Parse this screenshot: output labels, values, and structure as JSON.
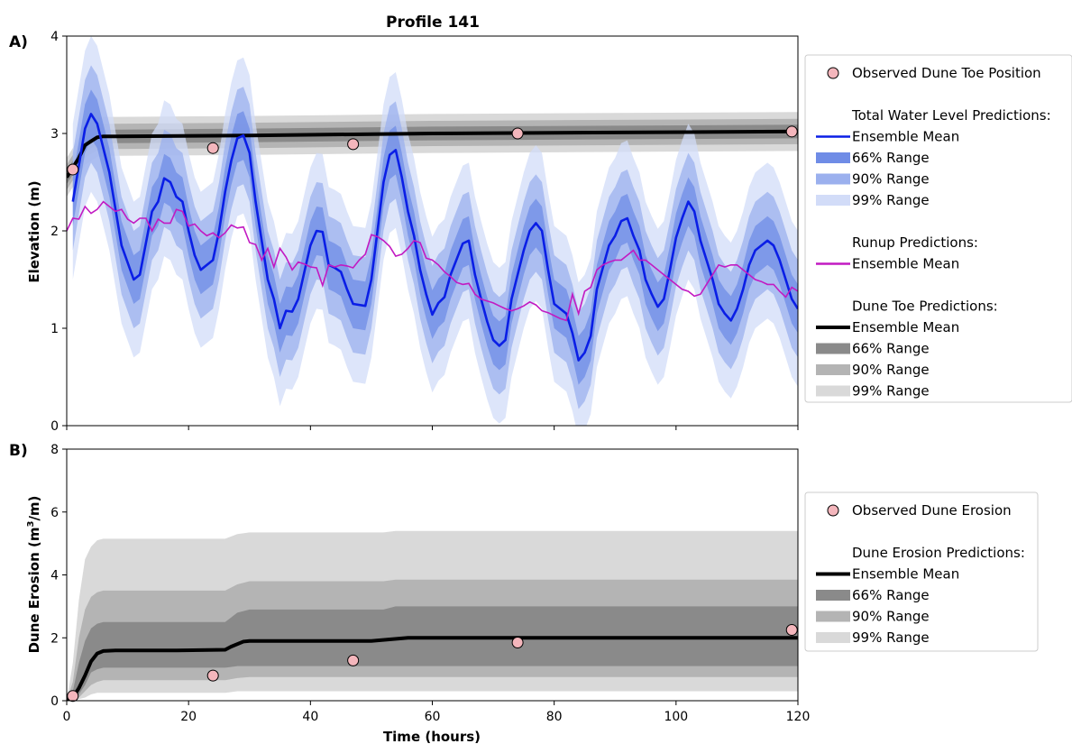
{
  "figure": {
    "title": "Profile 141",
    "panel_a_label": "A)",
    "panel_b_label": "B)"
  },
  "colors": {
    "twl_mean": "#0a1ee6",
    "twl_bands": [
      "#6f8ce6",
      "#9bb0ee",
      "#d2dcf8"
    ],
    "runup": "#c21ac2",
    "toe_bands": [
      "#8a8a8a",
      "#b4b4b4",
      "#d9d9d9"
    ],
    "observed_fill": "#f4b6bc"
  },
  "chart_data": [
    {
      "type": "line",
      "panel": "A)",
      "title": "Profile 141",
      "xlabel": "",
      "ylabel": "Elevation (m)",
      "xlim": [
        0,
        120
      ],
      "ylim": [
        0,
        4
      ],
      "xticks": [
        0,
        20,
        40,
        60,
        80,
        100,
        120
      ],
      "xtick_labels": [
        "",
        "",
        "",
        "",
        "",
        "",
        ""
      ],
      "yticks": [
        0,
        1,
        2,
        3,
        4
      ],
      "ytick_labels": [
        "0",
        "1",
        "2",
        "3",
        "4"
      ],
      "grid": false,
      "legend_position": "outside-right",
      "legend": [
        {
          "kind": "marker",
          "label": "Observed Dune Toe Position"
        },
        {
          "kind": "header",
          "label": "Total Water Level Predictions:"
        },
        {
          "kind": "line",
          "label": "Ensemble Mean",
          "color_key": "twl_mean"
        },
        {
          "kind": "band",
          "label": "66% Range",
          "color_key": "twl_bands",
          "index": 0
        },
        {
          "kind": "band",
          "label": "90% Range",
          "color_key": "twl_bands",
          "index": 1
        },
        {
          "kind": "band",
          "label": "99% Range",
          "color_key": "twl_bands",
          "index": 2
        },
        {
          "kind": "header",
          "label": "Runup Predictions:"
        },
        {
          "kind": "line",
          "label": "Ensemble Mean",
          "color_key": "runup"
        },
        {
          "kind": "header",
          "label": "Dune Toe Predictions:"
        },
        {
          "kind": "line",
          "label": "Ensemble Mean",
          "color_key": "black"
        },
        {
          "kind": "band",
          "label": "66% Range",
          "color_key": "toe_bands",
          "index": 0
        },
        {
          "kind": "band",
          "label": "90% Range",
          "color_key": "toe_bands",
          "index": 1
        },
        {
          "kind": "band",
          "label": "99% Range",
          "color_key": "toe_bands",
          "index": 2
        }
      ],
      "series": {
        "twl_mean": {
          "x": [
            1,
            3,
            4,
            5,
            7,
            9,
            11,
            12,
            14,
            15,
            16,
            17,
            18,
            19,
            20,
            21,
            22,
            24,
            25,
            26,
            27,
            28,
            29,
            30,
            31,
            33,
            34,
            35,
            36,
            37,
            38,
            39,
            40,
            41,
            42,
            43,
            44,
            45,
            46,
            47,
            49,
            50,
            51,
            52,
            53,
            54,
            55,
            56,
            57,
            58,
            59,
            60,
            61,
            62,
            63,
            65,
            66,
            67,
            68,
            69,
            70,
            71,
            72,
            73,
            75,
            76,
            77,
            78,
            79,
            80,
            81,
            82,
            83,
            84,
            85,
            86,
            87,
            89,
            90,
            91,
            92,
            93,
            94,
            95,
            96,
            97,
            98,
            99,
            100,
            101,
            102,
            103,
            104,
            106,
            107,
            108,
            109,
            110,
            111,
            112,
            113,
            114,
            115,
            116,
            117,
            118,
            119,
            120
          ],
          "values": [
            2.3,
            3.05,
            3.2,
            3.1,
            2.6,
            1.85,
            1.5,
            1.55,
            2.2,
            2.3,
            2.54,
            2.5,
            2.35,
            2.3,
            2.0,
            1.75,
            1.6,
            1.7,
            2.0,
            2.4,
            2.72,
            2.95,
            2.98,
            2.8,
            2.3,
            1.5,
            1.3,
            1.0,
            1.18,
            1.17,
            1.3,
            1.58,
            1.85,
            2.0,
            1.99,
            1.65,
            1.62,
            1.58,
            1.4,
            1.25,
            1.23,
            1.5,
            2.0,
            2.5,
            2.78,
            2.83,
            2.55,
            2.2,
            1.95,
            1.6,
            1.35,
            1.14,
            1.26,
            1.32,
            1.55,
            1.87,
            1.9,
            1.55,
            1.3,
            1.07,
            0.88,
            0.82,
            0.88,
            1.3,
            1.8,
            2.0,
            2.08,
            2.0,
            1.6,
            1.25,
            1.2,
            1.15,
            0.95,
            0.67,
            0.75,
            0.92,
            1.4,
            1.85,
            1.95,
            2.1,
            2.13,
            1.95,
            1.8,
            1.5,
            1.35,
            1.22,
            1.3,
            1.6,
            1.93,
            2.13,
            2.3,
            2.2,
            1.9,
            1.5,
            1.25,
            1.15,
            1.08,
            1.2,
            1.4,
            1.65,
            1.8,
            1.85,
            1.9,
            1.85,
            1.7,
            1.5,
            1.3,
            1.2
          ],
          "half_widths_66_90_99": [
            0.25,
            0.5,
            0.8
          ]
        },
        "runup_mean": {
          "x": [
            0,
            1,
            2,
            3,
            4,
            5,
            6,
            7,
            8,
            9,
            10,
            11,
            12,
            13,
            14,
            15,
            16,
            17,
            18,
            19,
            20,
            21,
            22,
            23,
            24,
            25,
            26,
            27,
            28,
            29,
            30,
            31,
            32,
            33,
            34,
            35,
            36,
            37,
            38,
            39,
            40,
            41,
            42,
            43,
            44,
            45,
            46,
            47,
            48,
            49,
            50,
            51,
            52,
            53,
            54,
            55,
            56,
            57,
            58,
            59,
            60,
            61,
            62,
            63,
            64,
            65,
            66,
            67,
            68,
            69,
            70,
            71,
            72,
            73,
            74,
            75,
            76,
            77,
            78,
            79,
            80,
            81,
            82,
            83,
            84,
            85,
            86,
            87,
            88,
            89,
            90,
            91,
            92,
            93,
            94,
            95,
            96,
            97,
            98,
            99,
            100,
            101,
            102,
            103,
            104,
            105,
            106,
            107,
            108,
            109,
            110,
            111,
            112,
            113,
            114,
            115,
            116,
            117,
            118,
            119,
            120
          ],
          "values": [
            2.0,
            2.13,
            2.12,
            2.25,
            2.18,
            2.22,
            2.3,
            2.25,
            2.2,
            2.22,
            2.12,
            2.08,
            2.13,
            2.13,
            2.0,
            2.12,
            2.08,
            2.08,
            2.22,
            2.2,
            2.05,
            2.07,
            2.0,
            1.95,
            1.98,
            1.93,
            1.98,
            2.06,
            2.03,
            2.04,
            1.88,
            1.86,
            1.7,
            1.82,
            1.63,
            1.82,
            1.73,
            1.6,
            1.68,
            1.66,
            1.63,
            1.62,
            1.44,
            1.65,
            1.63,
            1.65,
            1.64,
            1.62,
            1.7,
            1.76,
            1.96,
            1.94,
            1.9,
            1.84,
            1.74,
            1.76,
            1.82,
            1.9,
            1.88,
            1.72,
            1.7,
            1.65,
            1.58,
            1.53,
            1.47,
            1.45,
            1.46,
            1.35,
            1.3,
            1.28,
            1.26,
            1.23,
            1.2,
            1.18,
            1.2,
            1.23,
            1.27,
            1.24,
            1.18,
            1.16,
            1.13,
            1.1,
            1.08,
            1.35,
            1.15,
            1.38,
            1.42,
            1.6,
            1.65,
            1.68,
            1.7,
            1.7,
            1.75,
            1.8,
            1.7,
            1.7,
            1.65,
            1.6,
            1.55,
            1.5,
            1.45,
            1.4,
            1.38,
            1.33,
            1.35,
            1.45,
            1.55,
            1.65,
            1.63,
            1.65,
            1.65,
            1.6,
            1.55,
            1.5,
            1.48,
            1.45,
            1.45,
            1.38,
            1.32,
            1.42,
            1.38
          ]
        },
        "toe_mean": {
          "x": [
            0,
            1,
            2,
            3,
            4,
            5,
            6,
            8,
            30,
            60,
            90,
            120
          ],
          "values": [
            2.55,
            2.65,
            2.75,
            2.88,
            2.92,
            2.96,
            2.97,
            2.97,
            2.98,
            3.0,
            3.01,
            3.02
          ],
          "half_widths_66_90_99": [
            0.07,
            0.13,
            0.2
          ]
        },
        "observed_toe": {
          "x": [
            1,
            24,
            47,
            74,
            119
          ],
          "values": [
            2.63,
            2.85,
            2.89,
            3.0,
            3.02
          ]
        }
      }
    },
    {
      "type": "line",
      "panel": "B)",
      "title": "",
      "xlabel": "Time (hours)",
      "ylabel": "Dune Erosion (m³/m)",
      "ylabel_parts": [
        "Dune Erosion (m",
        "3",
        "/m)"
      ],
      "xlim": [
        0,
        120
      ],
      "ylim": [
        0,
        8
      ],
      "xticks": [
        0,
        20,
        40,
        60,
        80,
        100,
        120
      ],
      "xtick_labels": [
        "0",
        "20",
        "40",
        "60",
        "80",
        "100",
        "120"
      ],
      "yticks": [
        0,
        2,
        4,
        6,
        8
      ],
      "ytick_labels": [
        "0",
        "2",
        "4",
        "6",
        "8"
      ],
      "grid": false,
      "legend_position": "outside-right",
      "legend": [
        {
          "kind": "marker",
          "label": "Observed Dune Erosion"
        },
        {
          "kind": "header",
          "label": "Dune Erosion Predictions:"
        },
        {
          "kind": "line",
          "label": "Ensemble Mean",
          "color_key": "black"
        },
        {
          "kind": "band",
          "label": "66% Range",
          "color_key": "toe_bands",
          "index": 0
        },
        {
          "kind": "band",
          "label": "90% Range",
          "color_key": "toe_bands",
          "index": 1
        },
        {
          "kind": "band",
          "label": "99% Range",
          "color_key": "toe_bands",
          "index": 2
        }
      ],
      "series": {
        "mean": {
          "x": [
            0,
            1,
            2,
            3,
            4,
            5,
            6,
            8,
            18,
            26,
            27,
            29,
            30,
            50,
            53,
            56,
            120
          ],
          "values": [
            0,
            0.1,
            0.4,
            0.8,
            1.25,
            1.5,
            1.58,
            1.6,
            1.6,
            1.62,
            1.72,
            1.88,
            1.9,
            1.9,
            1.95,
            2.0,
            2.0
          ]
        },
        "band_66": {
          "x": [
            0,
            1,
            2,
            3,
            4,
            5,
            6,
            8,
            26,
            28,
            30,
            52,
            54,
            120
          ],
          "lower": [
            0,
            0.05,
            0.2,
            0.5,
            0.9,
            1.0,
            1.05,
            1.05,
            1.05,
            1.1,
            1.1,
            1.1,
            1.1,
            1.1
          ],
          "upper": [
            0,
            0.3,
            1.2,
            1.9,
            2.3,
            2.45,
            2.5,
            2.5,
            2.5,
            2.8,
            2.9,
            2.9,
            3.0,
            3.0
          ]
        },
        "band_90": {
          "x": [
            0,
            1,
            2,
            3,
            4,
            5,
            6,
            8,
            26,
            28,
            30,
            52,
            54,
            120
          ],
          "lower": [
            0,
            0.02,
            0.1,
            0.3,
            0.5,
            0.6,
            0.65,
            0.65,
            0.65,
            0.72,
            0.75,
            0.75,
            0.75,
            0.75
          ],
          "upper": [
            0,
            0.6,
            2.0,
            2.9,
            3.3,
            3.45,
            3.5,
            3.5,
            3.5,
            3.7,
            3.8,
            3.8,
            3.85,
            3.85
          ]
        },
        "band_99": {
          "x": [
            0,
            1,
            2,
            3,
            4,
            5,
            6,
            8,
            26,
            28,
            30,
            52,
            54,
            120
          ],
          "lower": [
            0,
            0.01,
            0.05,
            0.1,
            0.2,
            0.25,
            0.25,
            0.25,
            0.25,
            0.3,
            0.3,
            0.3,
            0.3,
            0.3
          ],
          "upper": [
            0,
            1.2,
            3.2,
            4.5,
            4.9,
            5.1,
            5.15,
            5.15,
            5.15,
            5.3,
            5.35,
            5.35,
            5.4,
            5.4
          ]
        },
        "observed": {
          "x": [
            1,
            24,
            47,
            74,
            119
          ],
          "values": [
            0.15,
            0.8,
            1.28,
            1.85,
            2.25
          ]
        }
      }
    }
  ]
}
